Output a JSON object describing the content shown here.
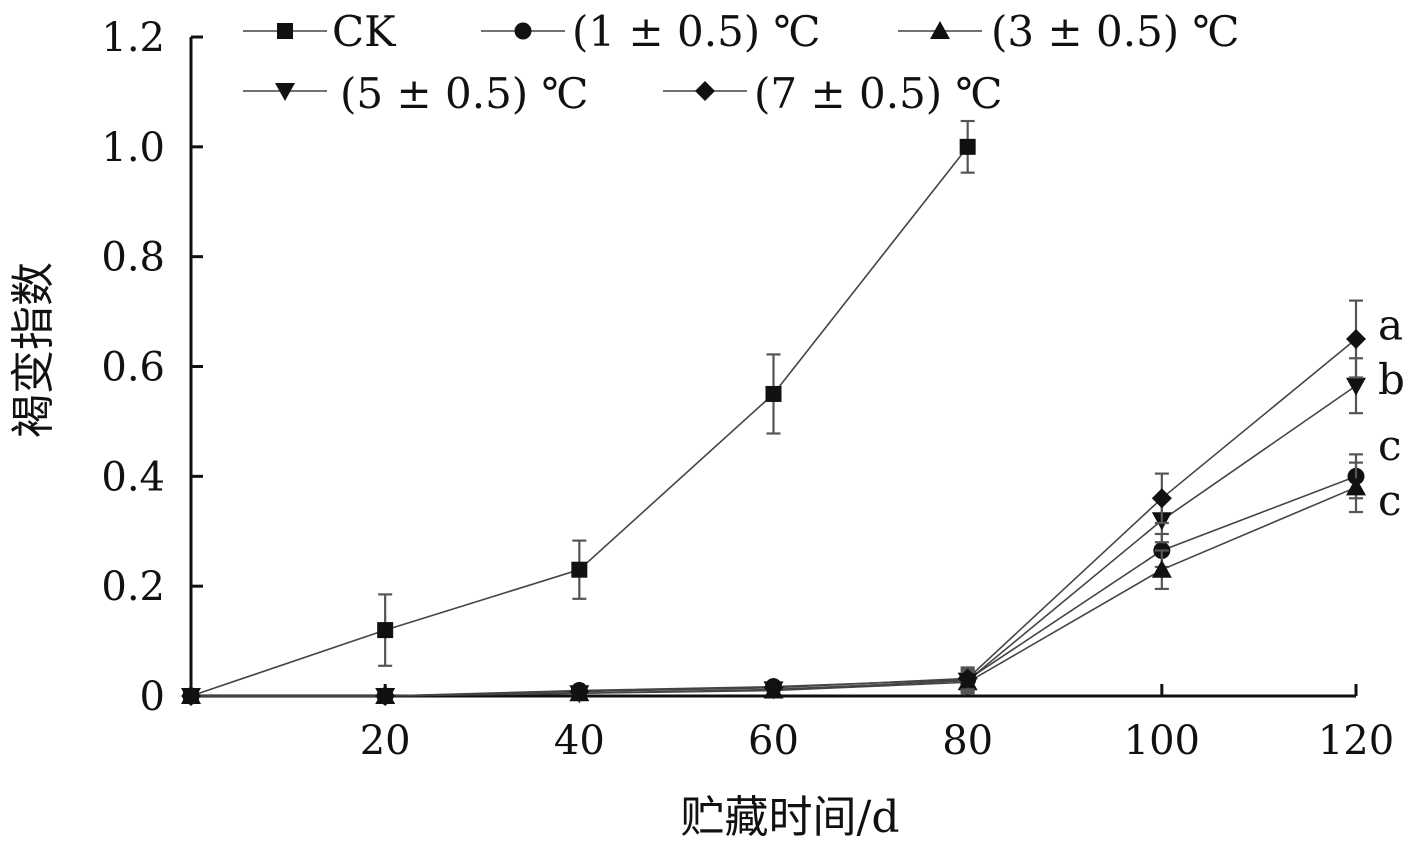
{
  "chart_data": {
    "type": "line",
    "title": "",
    "xlabel": "贮藏时间/d",
    "ylabel": "褐变指数",
    "x": [
      0,
      20,
      40,
      60,
      80,
      100,
      120
    ],
    "x_tick_labels": [
      "20",
      "40",
      "60",
      "80",
      "100",
      "120"
    ],
    "y_tick_labels": [
      "0",
      "0.2",
      "0.4",
      "0.6",
      "0.8",
      "1.0",
      "1.2"
    ],
    "xlim": [
      0,
      120
    ],
    "ylim": [
      0,
      1.2
    ],
    "grid": false,
    "legend_position": "top",
    "series": [
      {
        "name": "CK",
        "marker": "square",
        "x": [
          0,
          20,
          40,
          60,
          80
        ],
        "values": [
          0,
          0.12,
          0.23,
          0.55,
          1.0
        ],
        "errors": [
          0,
          0.065,
          0.053,
          0.072,
          0.047
        ]
      },
      {
        "name": "(1 ± 0.5) ℃",
        "marker": "circle",
        "x": [
          0,
          20,
          40,
          60,
          80,
          100,
          120
        ],
        "values": [
          0,
          0,
          0.01,
          0.017,
          0.03,
          0.265,
          0.4
        ],
        "errors": [
          0,
          0,
          0,
          0,
          0.02,
          0.03,
          0.04
        ]
      },
      {
        "name": "(3 ± 0.5) ℃",
        "marker": "triangle-up",
        "x": [
          0,
          20,
          40,
          60,
          80,
          100,
          120
        ],
        "values": [
          0,
          0,
          0.005,
          0.01,
          0.025,
          0.23,
          0.38
        ],
        "errors": [
          0,
          0,
          0,
          0,
          0.02,
          0.035,
          0.045
        ]
      },
      {
        "name": "(5 ± 0.5) ℃",
        "marker": "triangle-down",
        "x": [
          0,
          20,
          40,
          60,
          80,
          100,
          120
        ],
        "values": [
          0,
          0,
          0.005,
          0.012,
          0.028,
          0.32,
          0.565
        ],
        "errors": [
          0,
          0,
          0,
          0,
          0.02,
          0.04,
          0.05
        ]
      },
      {
        "name": "(7 ± 0.5) ℃",
        "marker": "diamond",
        "x": [
          0,
          20,
          40,
          60,
          80,
          100,
          120
        ],
        "values": [
          0,
          0,
          0.008,
          0.015,
          0.032,
          0.36,
          0.65
        ],
        "errors": [
          0,
          0,
          0,
          0,
          0.02,
          0.045,
          0.07
        ]
      }
    ],
    "annotations": [
      "a",
      "b",
      "c",
      "c"
    ],
    "annotation_values": [
      0.675,
      0.575,
      0.455,
      0.355
    ]
  }
}
